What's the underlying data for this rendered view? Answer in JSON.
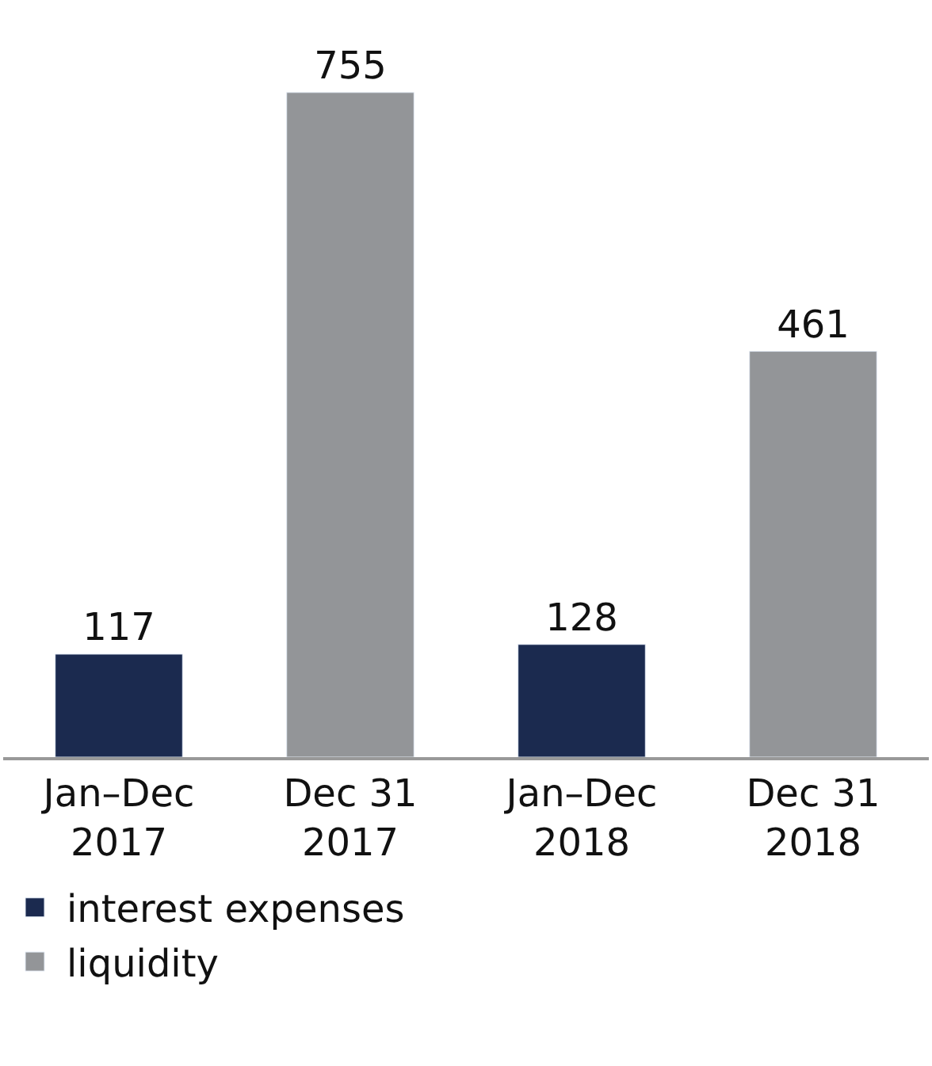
{
  "chart_data": {
    "type": "bar",
    "categories": [
      "Jan–Dec 2017",
      "Dec 31 2017",
      "Jan–Dec 2018",
      "Dec 31 2018"
    ],
    "series": [
      {
        "name": "interest expenses",
        "color": "#1b2a4f",
        "values": [
          117,
          null,
          128,
          null
        ]
      },
      {
        "name": "liquidity",
        "color": "#939598",
        "values": [
          null,
          755,
          null,
          461
        ]
      }
    ],
    "data_labels": true,
    "legend": "bottom"
  }
}
